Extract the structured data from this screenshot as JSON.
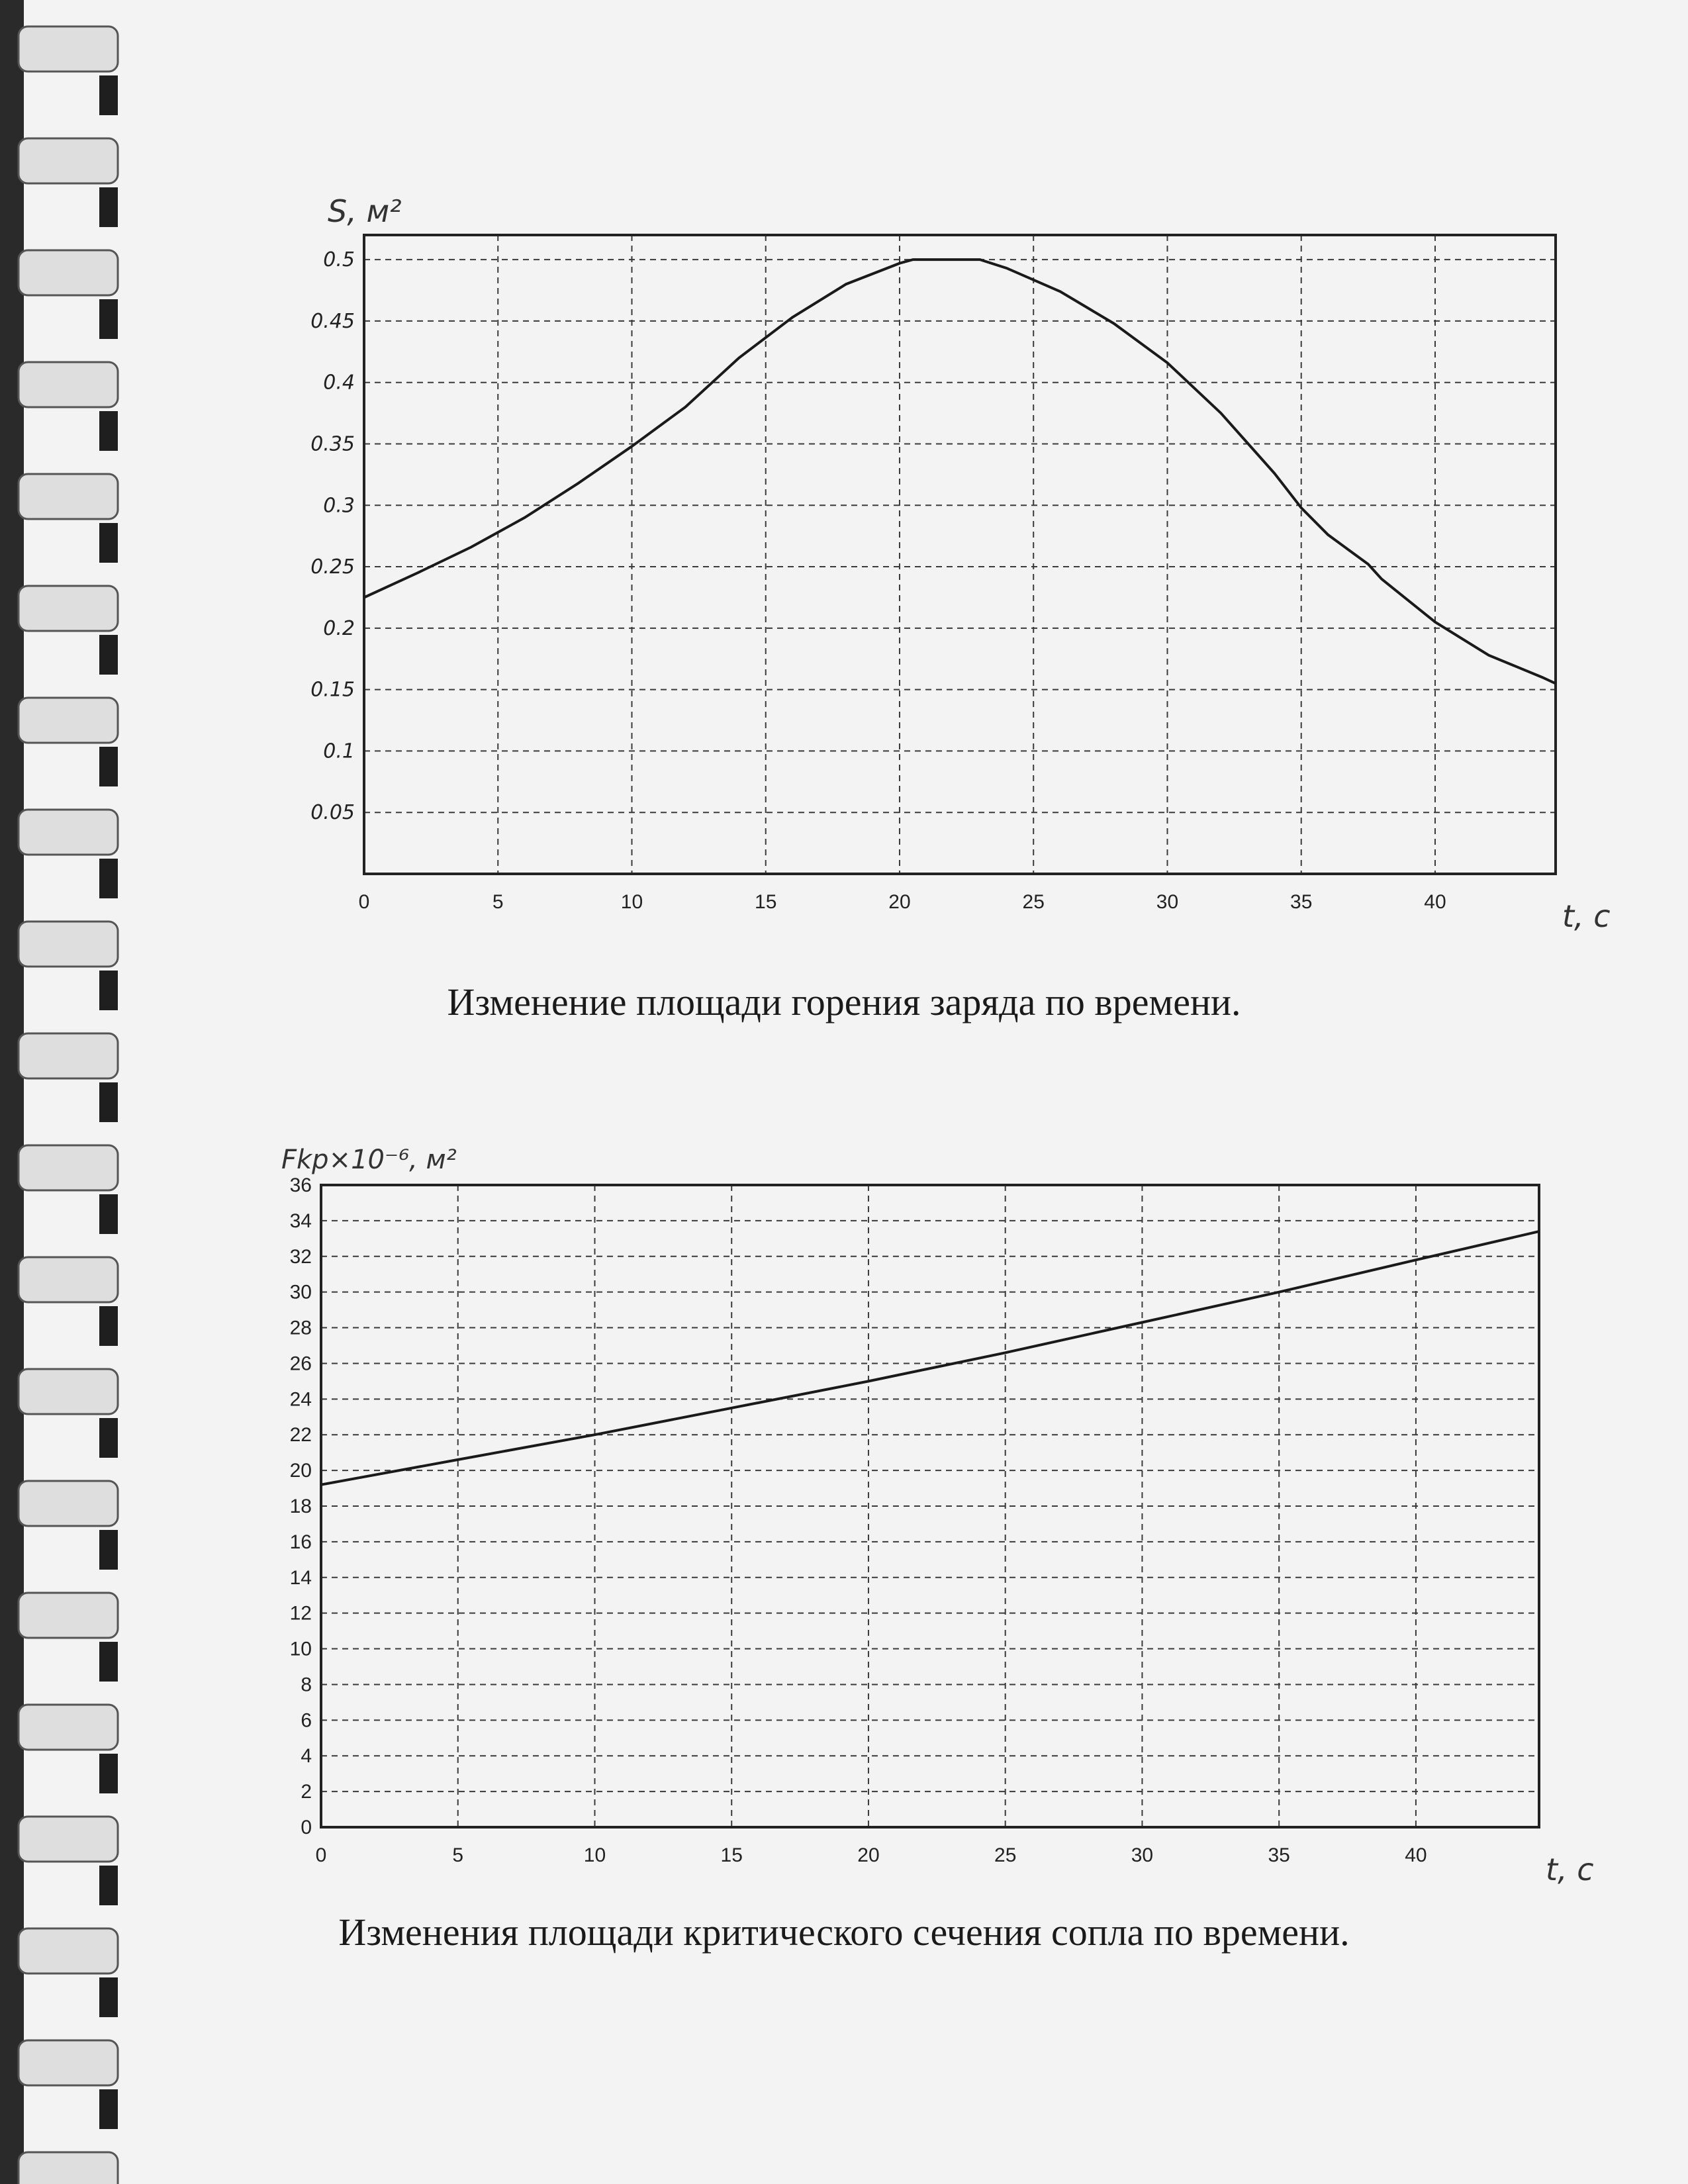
{
  "chart_data": [
    {
      "type": "line",
      "title": "Изменение площади горения заряда по времени.",
      "xlabel": "t, c",
      "ylabel": "S, м²",
      "xlim": [
        0,
        44.5
      ],
      "ylim": [
        0,
        0.52
      ],
      "x_ticks": [
        0,
        5,
        10,
        15,
        20,
        25,
        30,
        35,
        40
      ],
      "y_ticks": [
        0.05,
        0.1,
        0.15,
        0.2,
        0.25,
        0.3,
        0.35,
        0.4,
        0.45,
        0.5
      ],
      "x_tick_labels": [
        "0",
        "5",
        "10",
        "15",
        "20",
        "25",
        "30",
        "35",
        "40"
      ],
      "y_tick_labels": [
        "0.05",
        "0.1",
        "0.15",
        "0.2",
        "0.25",
        "0.3",
        "0.35",
        "0.4",
        "0.45",
        "0.5"
      ],
      "grid": true,
      "x": [
        0,
        2,
        4,
        6,
        8,
        10,
        12,
        14,
        16,
        18,
        20,
        20.5,
        22,
        23,
        24,
        26,
        28,
        30,
        32,
        34,
        35,
        36,
        37.5,
        38,
        40,
        42,
        44,
        44.5
      ],
      "y": [
        0.225,
        0.245,
        0.266,
        0.29,
        0.318,
        0.348,
        0.38,
        0.42,
        0.453,
        0.48,
        0.497,
        0.5,
        0.5,
        0.5,
        0.493,
        0.474,
        0.448,
        0.416,
        0.375,
        0.326,
        0.298,
        0.276,
        0.252,
        0.24,
        0.205,
        0.178,
        0.16,
        0.155
      ]
    },
    {
      "type": "line",
      "title": "Изменения площади критического сечения сопла по времени.",
      "xlabel": "t, c",
      "ylabel": "Fkp×10⁻⁶, м²",
      "xlim": [
        0,
        44.5
      ],
      "ylim": [
        0,
        36
      ],
      "x_ticks": [
        0,
        5,
        10,
        15,
        20,
        25,
        30,
        35,
        40
      ],
      "y_ticks": [
        0,
        2,
        4,
        6,
        8,
        10,
        12,
        14,
        16,
        18,
        20,
        22,
        24,
        26,
        28,
        30,
        32,
        34,
        36
      ],
      "x_tick_labels": [
        "0",
        "5",
        "10",
        "15",
        "20",
        "25",
        "30",
        "35",
        "40"
      ],
      "y_tick_labels": [
        "0",
        "2",
        "4",
        "6",
        "8",
        "10",
        "12",
        "14",
        "16",
        "18",
        "20",
        "22",
        "24",
        "26",
        "28",
        "30",
        "32",
        "34",
        "36"
      ],
      "grid": true,
      "x": [
        0,
        5,
        10,
        15,
        20,
        25,
        30,
        35,
        40,
        44.5
      ],
      "y": [
        19.2,
        20.6,
        22.0,
        23.5,
        25.0,
        26.6,
        28.3,
        30.0,
        31.8,
        33.4
      ]
    }
  ],
  "captions": [
    "Изменение площади горения заряда по времени.",
    "Изменения площади критического сечения сопла по времени."
  ]
}
